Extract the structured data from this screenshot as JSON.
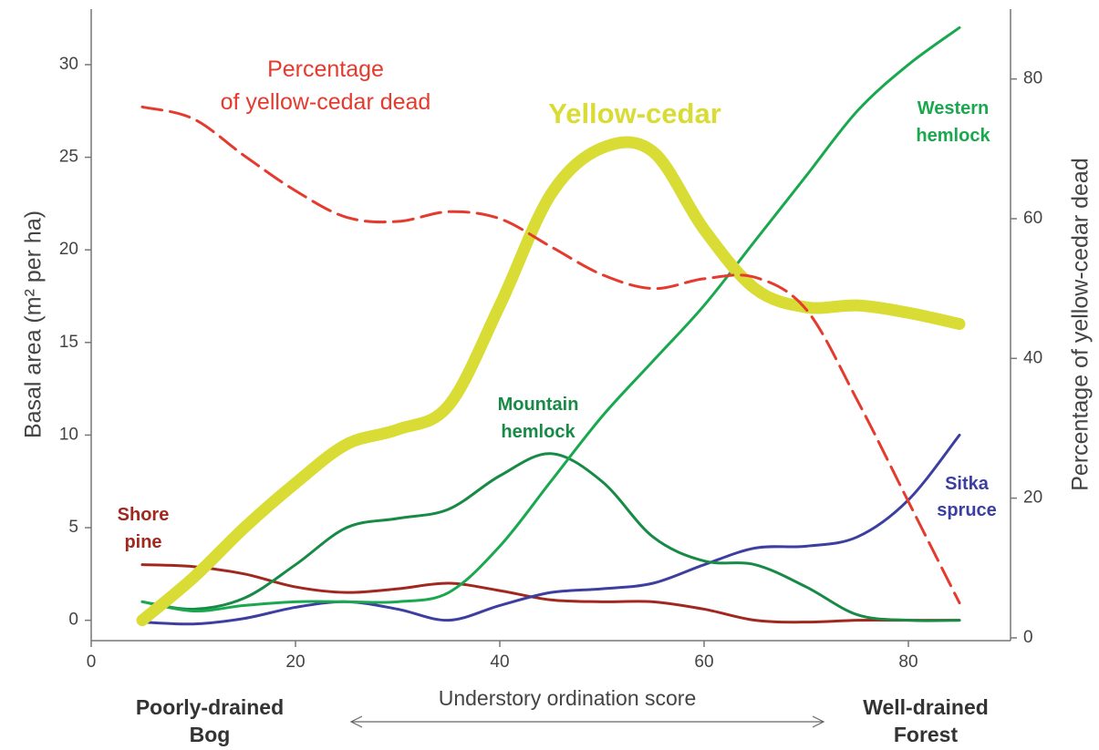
{
  "chart_data": {
    "type": "line",
    "x_label": "Understory ordination score",
    "y_label": "Basal area (m² per ha)",
    "y2_label": "Percentage of yellow-cedar dead",
    "annotations": [
      [
        "Poorly-drained",
        "Bog"
      ],
      [
        "Well-drained",
        "Forest"
      ]
    ],
    "x": [
      5,
      10,
      15,
      20,
      25,
      30,
      35,
      40,
      45,
      50,
      55,
      60,
      65,
      70,
      75,
      80,
      85
    ],
    "xlim": [
      0,
      90
    ],
    "xticks": [
      0,
      20,
      40,
      60,
      80
    ],
    "ylim": [
      -1.1,
      33
    ],
    "yticks": [
      0,
      5,
      10,
      15,
      20,
      25,
      30
    ],
    "y2lim": [
      -0.4,
      90
    ],
    "y2ticks": [
      0,
      20,
      40,
      60,
      80
    ],
    "series": [
      {
        "name": [
          "Percentage",
          "of yellow-cedar dead"
        ],
        "color": "#e53a2e",
        "dashed": true,
        "axis": "y2",
        "values": [
          76,
          74.3,
          69,
          64,
          60.2,
          59.6,
          61,
          60,
          56,
          52,
          50,
          51.4,
          51.6,
          47,
          34,
          19.5,
          5
        ]
      },
      {
        "name": [
          "Yellow-cedar"
        ],
        "color": "#d8dc34",
        "width": 13,
        "values": [
          0,
          2.3,
          5,
          7.4,
          9.5,
          10.3,
          11.6,
          17,
          23,
          25.5,
          25.3,
          21.1,
          17.9,
          16.9,
          17,
          16.6,
          16
        ]
      },
      {
        "name": [
          "Western",
          "hemlock"
        ],
        "color": "#1aa84f",
        "values": [
          1,
          0.5,
          0.8,
          1,
          1,
          1,
          1.5,
          4,
          7.5,
          11,
          14,
          17,
          20.5,
          24,
          27.5,
          30,
          32
        ]
      },
      {
        "name": [
          "Mountain",
          "hemlock"
        ],
        "color": "#178a45",
        "values": [
          1,
          0.6,
          1.2,
          3,
          5,
          5.5,
          6,
          7.8,
          9,
          7.5,
          4.5,
          3.2,
          3,
          1.8,
          0.3,
          0,
          0
        ]
      },
      {
        "name": [
          "Sitka",
          "spruce"
        ],
        "color": "#3c3fa0",
        "values": [
          -0.1,
          -0.2,
          0.1,
          0.7,
          1,
          0.6,
          0,
          0.8,
          1.5,
          1.7,
          2,
          3,
          3.9,
          4,
          4.5,
          6.5,
          10
        ]
      },
      {
        "name": [
          "Shore",
          "pine"
        ],
        "color": "#a0281e",
        "values": [
          3,
          2.9,
          2.5,
          1.8,
          1.5,
          1.7,
          2,
          1.6,
          1.1,
          1,
          1,
          0.6,
          0,
          -0.1,
          0,
          0,
          0
        ]
      }
    ]
  }
}
